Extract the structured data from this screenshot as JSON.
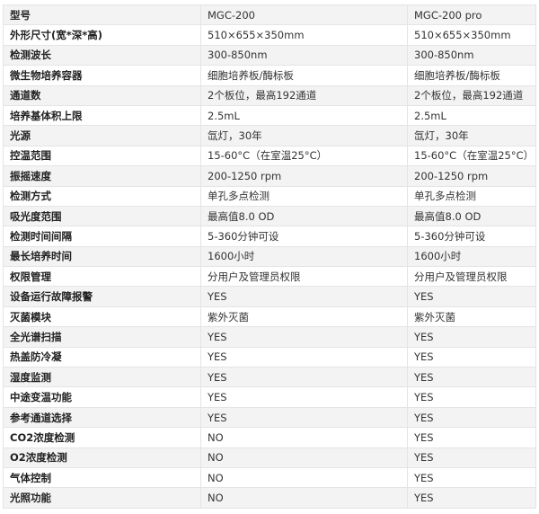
{
  "table": {
    "rows": [
      [
        "型号",
        "MGC-200",
        "MGC-200 pro"
      ],
      [
        "外形尺寸(宽*深*高)",
        "510×655×350mm",
        "510×655×350mm"
      ],
      [
        "检测波长",
        "300-850nm",
        "300-850nm"
      ],
      [
        "微生物培养容器",
        "细胞培养板/酶标板",
        "细胞培养板/酶标板"
      ],
      [
        "通道数",
        "2个板位，最高192通道",
        "2个板位，最高192通道"
      ],
      [
        "培养基体积上限",
        "2.5mL",
        "2.5mL"
      ],
      [
        "光源",
        "氙灯，30年",
        "氙灯，30年"
      ],
      [
        "控温范围",
        "15-60°C（在室温25°C）",
        "15-60°C（在室温25°C）"
      ],
      [
        "振摇速度",
        "200-1250 rpm",
        "200-1250 rpm"
      ],
      [
        "检测方式",
        "单孔多点检测",
        "单孔多点检测"
      ],
      [
        "吸光度范围",
        "最高值8.0 OD",
        "最高值8.0 OD"
      ],
      [
        "检测时间间隔",
        "5-360分钟可设",
        "5-360分钟可设"
      ],
      [
        "最长培养时间",
        "1600小时",
        "1600小时"
      ],
      [
        "权限管理",
        "分用户及管理员权限",
        "分用户及管理员权限"
      ],
      [
        "设备运行故障报警",
        "YES",
        "YES"
      ],
      [
        "灭菌模块",
        "紫外灭菌",
        "紫外灭菌"
      ],
      [
        "全光谱扫描",
        "YES",
        "YES"
      ],
      [
        "热盖防冷凝",
        "YES",
        "YES"
      ],
      [
        "湿度监测",
        "YES",
        "YES"
      ],
      [
        "中途变温功能",
        "YES",
        "YES"
      ],
      [
        "参考通道选择",
        "YES",
        "YES"
      ],
      [
        "CO2浓度检测",
        "NO",
        "YES"
      ],
      [
        "O2浓度检测",
        "NO",
        "YES"
      ],
      [
        "气体控制",
        "NO",
        "YES"
      ],
      [
        "光照功能",
        "NO",
        "YES"
      ]
    ]
  }
}
